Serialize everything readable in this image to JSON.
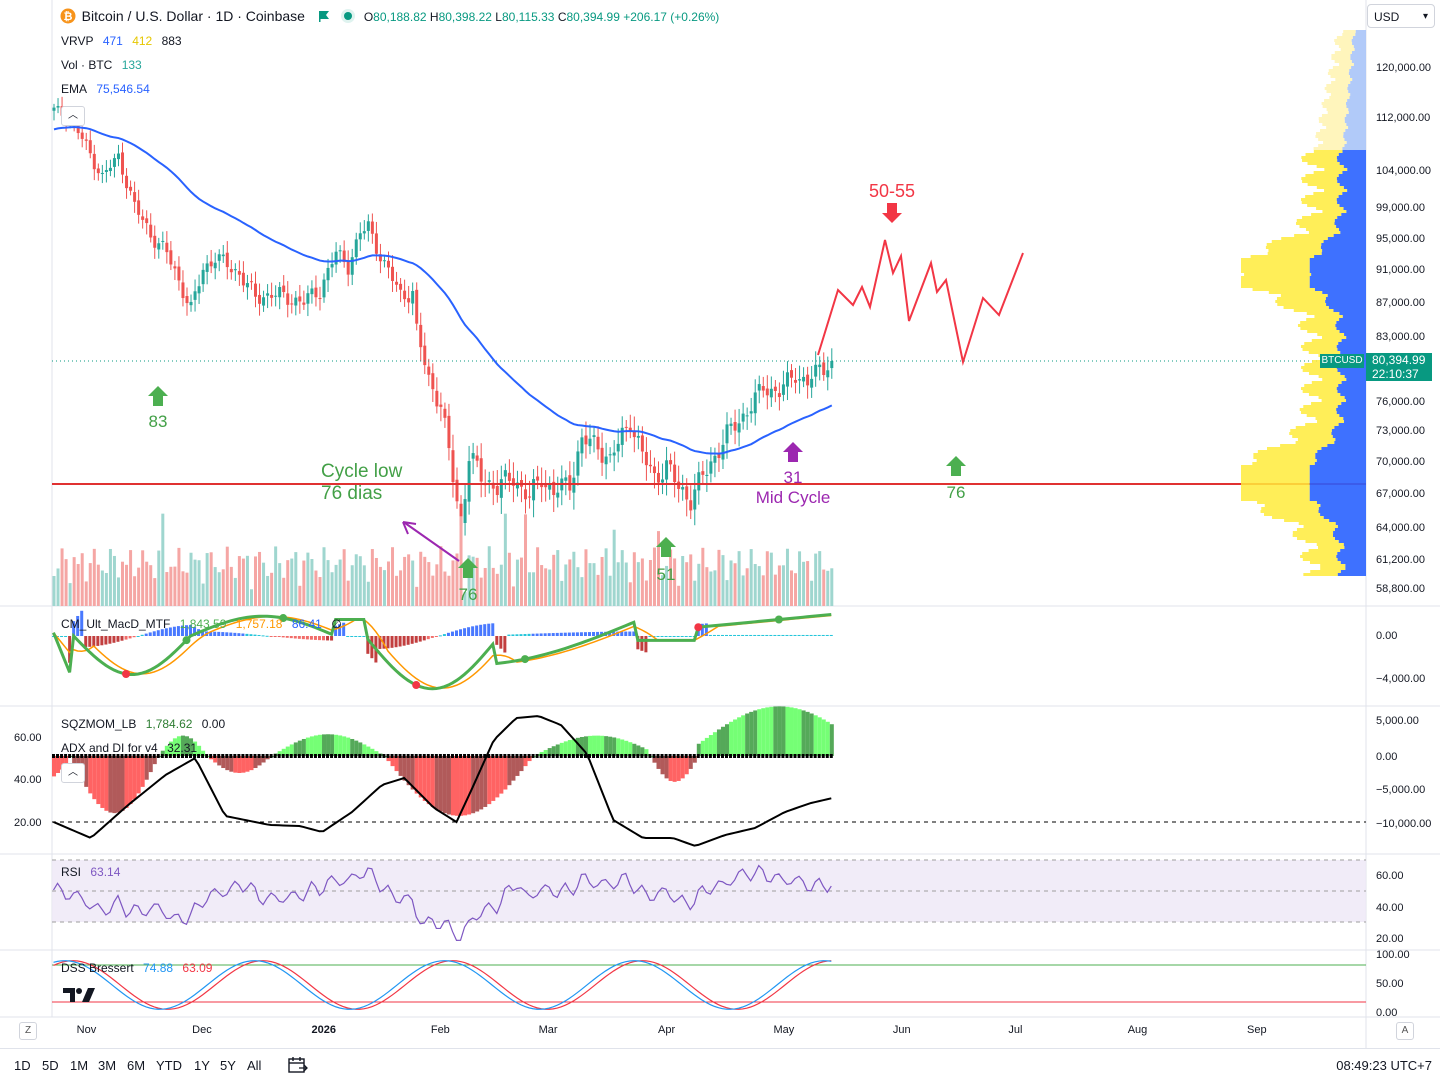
{
  "header": {
    "symbol_title": "Bitcoin / U.S. Dollar · 1D · Coinbase",
    "ohlc": {
      "o_label": "O",
      "o": "80,188.82",
      "h_label": "H",
      "h": "80,398.22",
      "l_label": "L",
      "l": "80,115.33",
      "c_label": "C",
      "c": "80,394.99",
      "change": "+206.17 (+0.26%)"
    },
    "currency": "USD"
  },
  "indicators": {
    "vrvp": {
      "name": "VRVP",
      "v1": "471",
      "v2": "412",
      "v3": "883"
    },
    "vol": {
      "name": "Vol · BTC",
      "value": "133"
    },
    "ema": {
      "name": "EMA",
      "value": "75,546.54"
    },
    "macd": {
      "name": "CM_Ult_MacD_MTF",
      "v1": "1,843.59",
      "v2": "1,757.18",
      "v3": "86.41",
      "icon": "∅"
    },
    "sqz": {
      "name": "SQZMOM_LB",
      "v1": "1,784.62",
      "v2": "0.00"
    },
    "adx": {
      "name": "ADX and DI for v4",
      "value": "32.31"
    },
    "rsi": {
      "name": "RSI",
      "value": "63.14"
    },
    "dss": {
      "name": "DSS Bressert",
      "v1": "74.88",
      "v2": "63.09"
    }
  },
  "price_axis": {
    "ticks": [
      "120,000.00",
      "112,000.00",
      "104,000.00",
      "99,000.00",
      "95,000.00",
      "91,000.00",
      "87,000.00",
      "83,000.00",
      "76,000.00",
      "73,000.00",
      "70,000.00",
      "67,000.00",
      "64,000.00",
      "61,200.00",
      "58,800.00"
    ],
    "last_price": "80,394.99",
    "countdown": "22:10:37",
    "symbol": "BTCUSD"
  },
  "macd_axis": {
    "ticks": [
      "0.00",
      "−4,000.00"
    ]
  },
  "sqz_axis": {
    "ticks": [
      "5,000.00",
      "0.00",
      "−5,000.00",
      "−10,000.00"
    ]
  },
  "adx_left_axis": {
    "ticks": [
      "60.00",
      "40.00",
      "20.00"
    ]
  },
  "rsi_axis": {
    "ticks": [
      "60.00",
      "40.00",
      "20.00"
    ]
  },
  "dss_axis": {
    "ticks": [
      "100.00",
      "50.00",
      "0.00"
    ]
  },
  "time_axis": {
    "labels": [
      "Nov",
      "Dec",
      "2026",
      "Feb",
      "Mar",
      "Apr",
      "May",
      "Jun",
      "Jul",
      "Aug",
      "Sep"
    ]
  },
  "annotations": {
    "a83": "83",
    "cycle_low_1": "Cycle low",
    "cycle_low_2": "76 dias",
    "a76_low": "76",
    "a51": "51",
    "a31": "31",
    "mid_cycle": "Mid Cycle",
    "a50_55": "50-55",
    "a76_right": "76"
  },
  "bottom_bar": {
    "ranges": [
      "1D",
      "5D",
      "1M",
      "3M",
      "6M",
      "YTD",
      "1Y",
      "5Y",
      "All"
    ],
    "clock": "08:49:23 UTC+7",
    "zoom_z": "Z",
    "zoom_a": "A"
  },
  "colors": {
    "up": "#26a69a",
    "down": "#ef5350",
    "ema": "#2962ff",
    "projection": "#f23645",
    "green_arrow": "#4caf50",
    "purple": "#9c27b0",
    "vrvp_blue": "#2962ff",
    "vrvp_yellow": "#ffeb3b"
  }
}
